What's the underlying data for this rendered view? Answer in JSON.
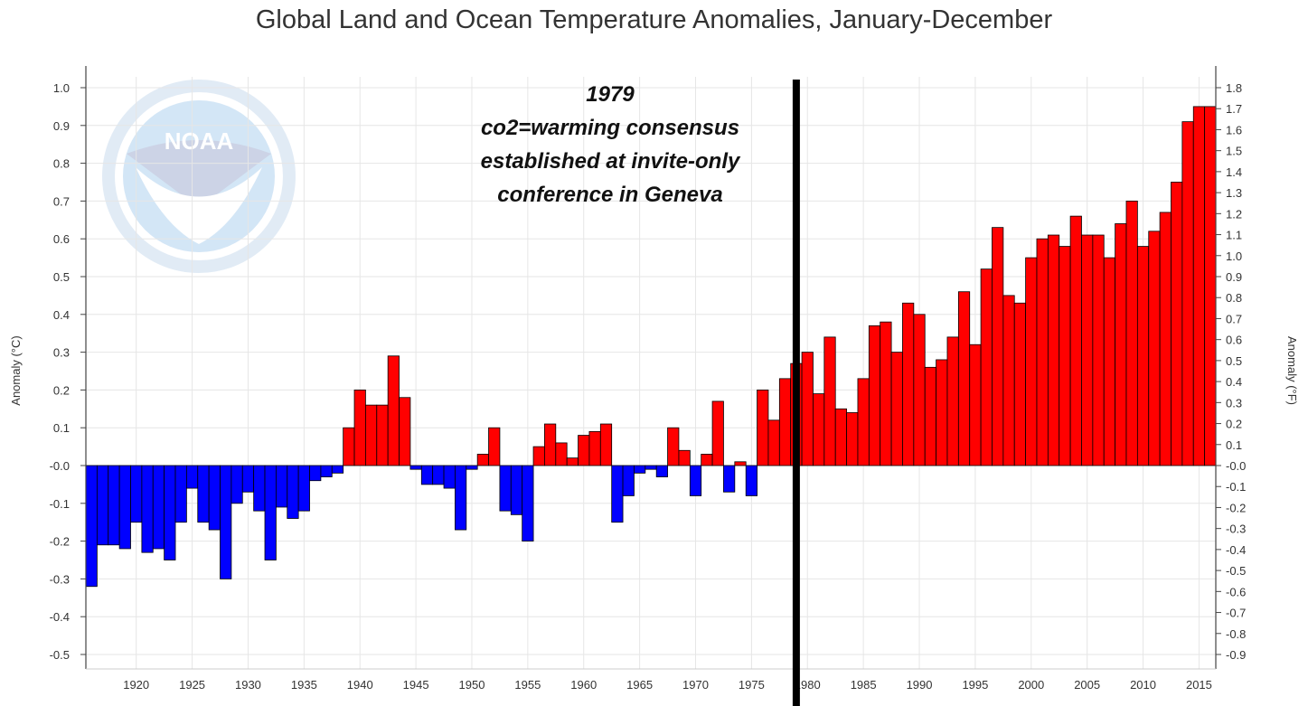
{
  "chart_data": {
    "type": "bar",
    "title": "Global Land and Ocean Temperature Anomalies, January-December",
    "ylabel_left": "Anomaly (°C)",
    "ylabel_right": "Anomaly (°F)",
    "ylim": [
      -0.5,
      1.0
    ],
    "yticks_left": [
      "1.0",
      "0.9",
      "0.8",
      "0.7",
      "0.6",
      "0.5",
      "0.4",
      "0.3",
      "0.2",
      "0.1",
      "-0.0",
      "-0.1",
      "-0.2",
      "-0.3",
      "-0.4",
      "-0.5"
    ],
    "yticks_right": [
      "1.8",
      "1.7",
      "1.6",
      "1.5",
      "1.4",
      "1.3",
      "1.2",
      "1.1",
      "1.0",
      "0.9",
      "0.8",
      "0.7",
      "0.6",
      "0.5",
      "0.4",
      "0.3",
      "0.2",
      "0.1",
      "-0.0",
      "-0.1",
      "-0.2",
      "-0.3",
      "-0.4",
      "-0.5",
      "-0.6",
      "-0.7",
      "-0.8",
      "-0.9"
    ],
    "xticks": [
      "1920",
      "1925",
      "1930",
      "1935",
      "1940",
      "1945",
      "1950",
      "1955",
      "1960",
      "1965",
      "1970",
      "1975",
      "1980",
      "1985",
      "1990",
      "1995",
      "2000",
      "2005",
      "2010",
      "2015"
    ],
    "years": [
      1916,
      1917,
      1918,
      1919,
      1920,
      1921,
      1922,
      1923,
      1924,
      1925,
      1926,
      1927,
      1928,
      1929,
      1930,
      1931,
      1932,
      1933,
      1934,
      1935,
      1936,
      1937,
      1938,
      1939,
      1940,
      1941,
      1942,
      1943,
      1944,
      1945,
      1946,
      1947,
      1948,
      1949,
      1950,
      1951,
      1952,
      1953,
      1954,
      1955,
      1956,
      1957,
      1958,
      1959,
      1960,
      1961,
      1962,
      1963,
      1964,
      1965,
      1966,
      1967,
      1968,
      1969,
      1970,
      1971,
      1972,
      1973,
      1974,
      1975,
      1976,
      1977,
      1978,
      1979,
      1980,
      1981,
      1982,
      1983,
      1984,
      1985,
      1986,
      1987,
      1988,
      1989,
      1990,
      1991,
      1992,
      1993,
      1994,
      1995,
      1996,
      1997,
      1998,
      1999,
      2000,
      2001,
      2002,
      2003,
      2004,
      2005,
      2006,
      2007,
      2008,
      2009,
      2010,
      2011,
      2012,
      2013,
      2014,
      2015,
      2016
    ],
    "values": [
      -0.32,
      -0.21,
      -0.21,
      -0.22,
      -0.15,
      -0.23,
      -0.22,
      -0.25,
      -0.15,
      -0.06,
      -0.15,
      -0.17,
      -0.3,
      -0.1,
      -0.07,
      -0.12,
      -0.25,
      -0.11,
      -0.14,
      -0.12,
      -0.04,
      -0.03,
      -0.02,
      0.1,
      0.2,
      0.16,
      0.16,
      0.29,
      0.18,
      -0.01,
      -0.05,
      -0.05,
      -0.06,
      -0.17,
      -0.01,
      0.03,
      0.1,
      -0.12,
      -0.13,
      -0.2,
      0.05,
      0.11,
      0.06,
      0.02,
      0.08,
      0.09,
      0.11,
      -0.15,
      -0.08,
      -0.02,
      -0.01,
      -0.03,
      0.1,
      0.04,
      -0.08,
      0.03,
      0.17,
      -0.07,
      0.01,
      -0.08,
      0.2,
      0.12,
      0.23,
      0.27,
      0.3,
      0.19,
      0.34,
      0.15,
      0.14,
      0.23,
      0.37,
      0.38,
      0.3,
      0.43,
      0.4,
      0.26,
      0.28,
      0.34,
      0.46,
      0.32,
      0.52,
      0.63,
      0.45,
      0.43,
      0.55,
      0.6,
      0.61,
      0.58,
      0.66,
      0.61,
      0.61,
      0.55,
      0.64,
      0.7,
      0.58,
      0.62,
      0.67,
      0.75,
      0.91,
      0.95,
      0.95
    ],
    "positive_color": "#ff0000",
    "negative_color": "#0000ff",
    "annotation": {
      "year": 1979.5,
      "lines": [
        "1979",
        "co2=warming consensus",
        "established at invite-only",
        "conference in Geneva"
      ]
    },
    "watermark": "NOAA"
  }
}
